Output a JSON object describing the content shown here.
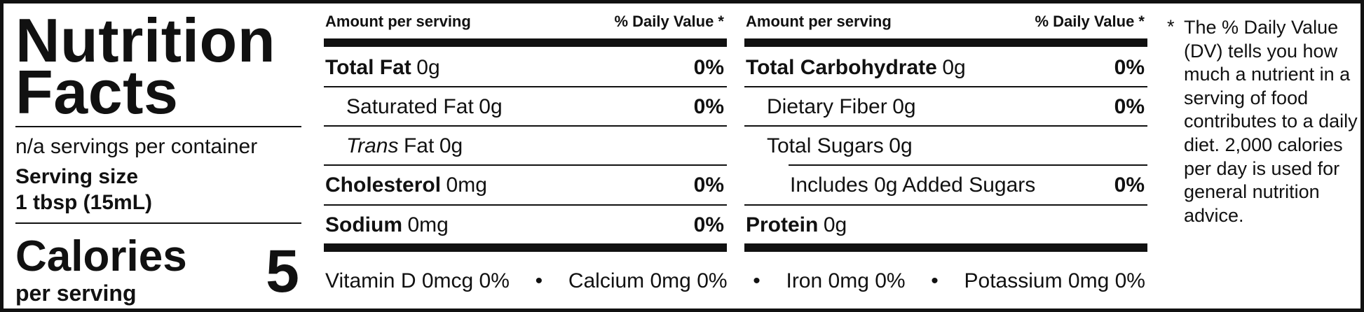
{
  "header": {
    "title": "Nutrition Facts",
    "servings": "n/a servings per container",
    "serving_size_label": "Serving size",
    "serving_size": "1 tbsp (15mL)",
    "calories_label": "Calories",
    "calories_sub": "per serving",
    "calories": 5
  },
  "columns": [
    {
      "amount_header": "Amount per serving",
      "dv_header": "% Daily Value *",
      "rows": [
        {
          "name": "Total Fat",
          "amount": "0g",
          "dv": "0%",
          "bold": true,
          "indent": 0
        },
        {
          "name": "Saturated Fat",
          "amount": "0g",
          "dv": "0%",
          "bold": false,
          "indent": 1
        },
        {
          "name_italic": "Trans",
          "name": "Fat",
          "amount": "0g",
          "bold": false,
          "indent": 1
        },
        {
          "name": "Cholesterol",
          "amount": "0mg",
          "dv": "0%",
          "bold": true,
          "indent": 0
        },
        {
          "name": "Sodium",
          "amount": "0mg",
          "dv": "0%",
          "bold": true,
          "indent": 0
        }
      ]
    },
    {
      "amount_header": "Amount per serving",
      "dv_header": "% Daily Value *",
      "rows": [
        {
          "name": "Total Carbohydrate",
          "amount": "0g",
          "dv": "0%",
          "bold": true,
          "indent": 0
        },
        {
          "name": "Dietary Fiber",
          "amount": "0g",
          "dv": "0%",
          "bold": false,
          "indent": 1
        },
        {
          "name": "Total Sugars",
          "amount": "0g",
          "bold": false,
          "indent": 1
        },
        {
          "name": "Includes 0g Added Sugars",
          "dv": "0%",
          "bold": false,
          "indent": 2
        },
        {
          "name": "Protein",
          "amount": "0g",
          "bold": true,
          "indent": 0
        }
      ]
    }
  ],
  "vitamins": [
    "Vitamin D 0mcg 0%",
    "Calcium 0mg 0%",
    "Iron 0mg 0%",
    "Potassium 0mg 0%"
  ],
  "vitamin_separator": "•",
  "footnote": {
    "marker": "*",
    "text": "The % Daily Value (DV) tells you how much a nutrient in a serving of food contributes to a daily diet. 2,000 calories per day is used for general nutrition advice."
  }
}
